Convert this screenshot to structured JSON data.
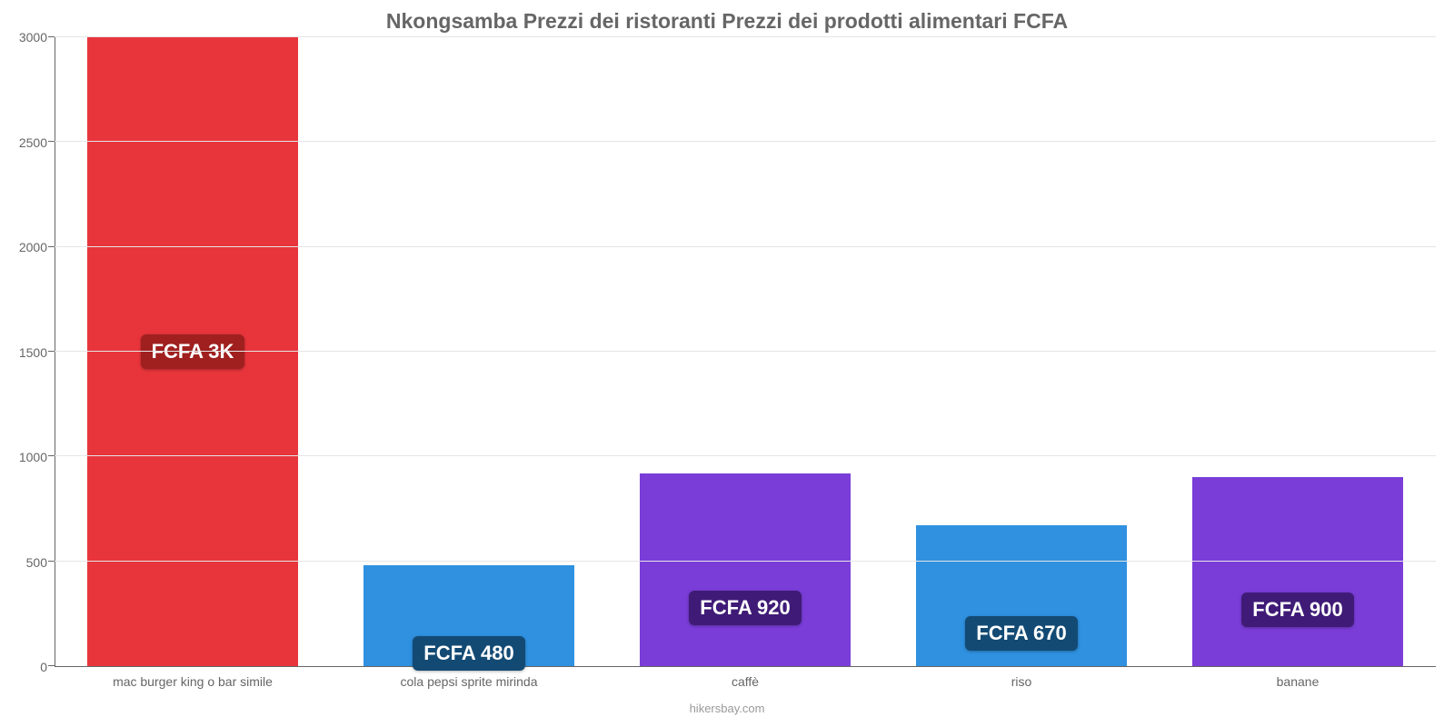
{
  "chart": {
    "type": "bar",
    "title": "Nkongsamba Prezzi dei ristoranti Prezzi dei prodotti alimentari FCFA",
    "title_fontsize": 23,
    "title_color": "#666666",
    "background_color": "#ffffff",
    "grid_color": "#e5e5e5",
    "axis_color": "#666666",
    "bar_width_pct": 76,
    "ylim": [
      0,
      3000
    ],
    "ytick_step": 500,
    "yticks": [
      0,
      500,
      1000,
      1500,
      2000,
      2500,
      3000
    ],
    "categories": [
      "mac burger king o bar simile",
      "cola pepsi sprite mirinda",
      "caffè",
      "riso",
      "banane"
    ],
    "values": [
      3000,
      480,
      920,
      670,
      900
    ],
    "value_labels": [
      "FCFA 3K",
      "FCFA 480",
      "FCFA 920",
      "FCFA 670",
      "FCFA 900"
    ],
    "bar_colors": [
      "#e8353b",
      "#2f91e0",
      "#7a3dd8",
      "#2f91e0",
      "#7a3dd8"
    ],
    "badge_colors": [
      "#a01f1f",
      "#134a74",
      "#3f1b77",
      "#134a74",
      "#3f1b77"
    ],
    "badge_fontsize": 22,
    "value_badge_position_pct": [
      50,
      87,
      70,
      77,
      70
    ],
    "label_fontsize": 14,
    "label_color": "#666666",
    "attribution": "hikersbay.com",
    "attribution_color": "#999999"
  }
}
